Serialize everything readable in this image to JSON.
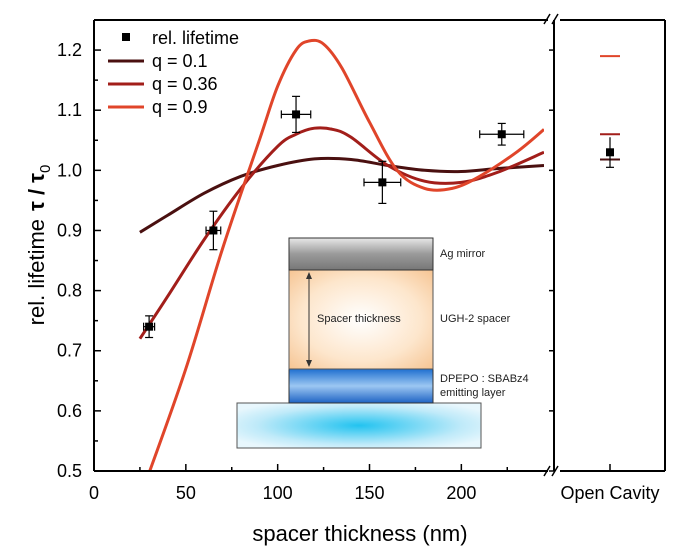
{
  "chart_data": {
    "type": "line",
    "xlabel": "spacer thickness (nm)",
    "ylabel_main": "rel. lifetime",
    "ylabel_tau": "τ / τ",
    "ylabel_sub": "0",
    "xlim": [
      0,
      245
    ],
    "ylim": [
      0.5,
      1.25
    ],
    "xticks": [
      0,
      50,
      100,
      150,
      200
    ],
    "yticks": [
      0.5,
      0.6,
      0.7,
      0.8,
      0.9,
      1.0,
      1.1,
      1.2
    ],
    "ytick_labels": [
      "0.5",
      "0.6",
      "0.7",
      "0.8",
      "0.9",
      "1.0",
      "1.1",
      "1.2"
    ],
    "open_cavity_label": "Open Cavity",
    "colors": {
      "measured": "#000000",
      "q01": "#4a1010",
      "q036": "#a21e1a",
      "q09": "#e0452a"
    },
    "series": [
      {
        "name": "rel. lifetime",
        "kind": "scatter",
        "points": [
          {
            "x": 30,
            "y": 0.74,
            "xerr": 3,
            "yerr": 0.018
          },
          {
            "x": 65,
            "y": 0.9,
            "xerr": 4,
            "yerr": 0.032
          },
          {
            "x": 110,
            "y": 1.093,
            "xerr": 8,
            "yerr": 0.03
          },
          {
            "x": 157,
            "y": 0.98,
            "xerr": 10,
            "yerr": 0.035
          },
          {
            "x": 222,
            "y": 1.06,
            "xerr": 12,
            "yerr": 0.018
          }
        ]
      },
      {
        "name": "q = 0.1",
        "kind": "line",
        "x": [
          25,
          40,
          60,
          80,
          100,
          120,
          140,
          160,
          180,
          200,
          220,
          245
        ],
        "y": [
          0.897,
          0.925,
          0.962,
          0.99,
          1.008,
          1.019,
          1.018,
          1.008,
          1.0,
          0.998,
          1.003,
          1.008
        ]
      },
      {
        "name": "q = 0.36",
        "kind": "line",
        "x": [
          25,
          40,
          60,
          80,
          100,
          110,
          120,
          130,
          140,
          160,
          180,
          200,
          220,
          245
        ],
        "y": [
          0.72,
          0.79,
          0.885,
          0.97,
          1.04,
          1.06,
          1.07,
          1.068,
          1.055,
          1.008,
          0.982,
          0.98,
          0.997,
          1.03
        ]
      },
      {
        "name": "q = 0.9",
        "kind": "line",
        "x": [
          28,
          50,
          70,
          90,
          100,
          110,
          117,
          125,
          135,
          150,
          165,
          180,
          195,
          210,
          230,
          245
        ],
        "y": [
          0.48,
          0.67,
          0.87,
          1.05,
          1.14,
          1.2,
          1.215,
          1.21,
          1.17,
          1.08,
          1.0,
          0.97,
          0.97,
          0.99,
          1.03,
          1.068
        ]
      }
    ],
    "open_cavity": {
      "measured": 1.03,
      "yerr": 0.025,
      "q09_value": 1.19,
      "q036_value": 1.06,
      "q01_value": 1.018
    },
    "inset": {
      "ag_label": "Ag mirror",
      "spacer_label": "UGH-2 spacer",
      "thickness_label": "Spacer thickness",
      "emit_label_1": "DPEPO : SBABz4",
      "emit_label_2": "emitting layer"
    }
  }
}
